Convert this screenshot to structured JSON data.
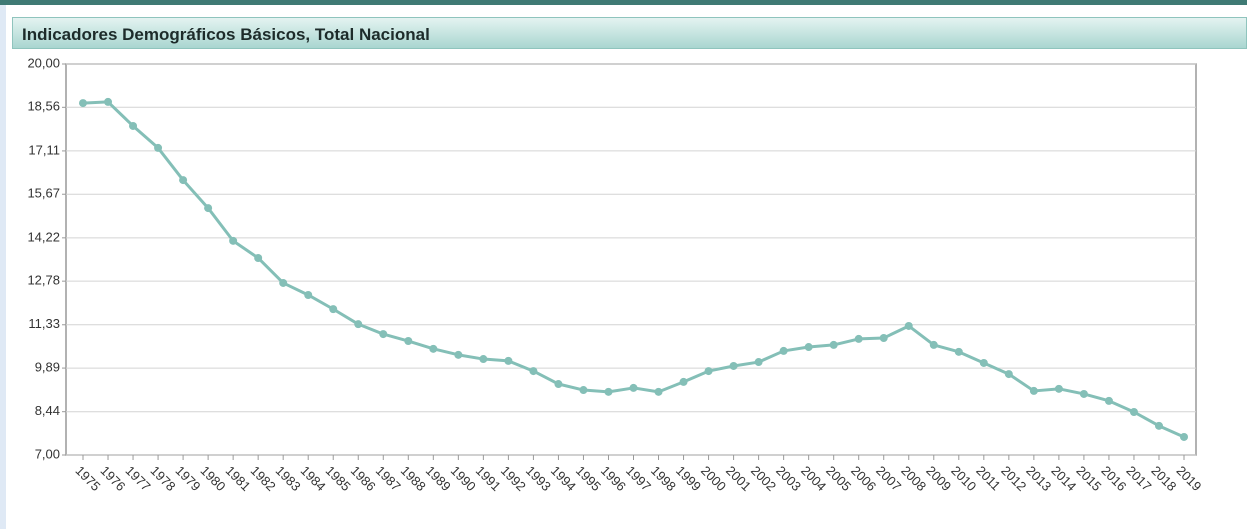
{
  "chart_data": {
    "type": "line",
    "title": "Indicadores Demográficos Básicos, Total Nacional",
    "categories": [
      "1975",
      "1976",
      "1977",
      "1978",
      "1979",
      "1980",
      "1981",
      "1982",
      "1983",
      "1984",
      "1985",
      "1986",
      "1987",
      "1988",
      "1989",
      "1990",
      "1991",
      "1992",
      "1993",
      "1994",
      "1995",
      "1996",
      "1997",
      "1998",
      "1999",
      "2000",
      "2001",
      "2002",
      "2003",
      "2004",
      "2005",
      "2006",
      "2007",
      "2008",
      "2009",
      "2010",
      "2011",
      "2012",
      "2013",
      "2014",
      "2015",
      "2016",
      "2017",
      "2018",
      "2019"
    ],
    "series": [
      {
        "color": "#84bfb7",
        "values": [
          18.7,
          18.74,
          17.94,
          17.21,
          16.14,
          15.21,
          14.12,
          13.55,
          12.72,
          12.32,
          11.85,
          11.35,
          11.02,
          10.79,
          10.53,
          10.33,
          10.19,
          10.13,
          9.79,
          9.36,
          9.16,
          9.1,
          9.23,
          9.1,
          9.43,
          9.79,
          9.96,
          10.09,
          10.46,
          10.59,
          10.66,
          10.86,
          10.89,
          11.29,
          10.66,
          10.43,
          10.06,
          9.69,
          9.13,
          9.2,
          9.03,
          8.8,
          8.43,
          7.97,
          7.6
        ]
      }
    ],
    "ylim": [
      7.0,
      20.0
    ],
    "yticks": [
      {
        "value": 7.0,
        "label": "7,00"
      },
      {
        "value": 8.44,
        "label": "8,44"
      },
      {
        "value": 9.89,
        "label": "9,89"
      },
      {
        "value": 11.33,
        "label": "11,33"
      },
      {
        "value": 12.78,
        "label": "12,78"
      },
      {
        "value": 14.22,
        "label": "14,22"
      },
      {
        "value": 15.67,
        "label": "15,67"
      },
      {
        "value": 17.11,
        "label": "17,11"
      },
      {
        "value": 18.56,
        "label": "18,56"
      },
      {
        "value": 20.0,
        "label": "20,00"
      }
    ],
    "grid": true
  }
}
